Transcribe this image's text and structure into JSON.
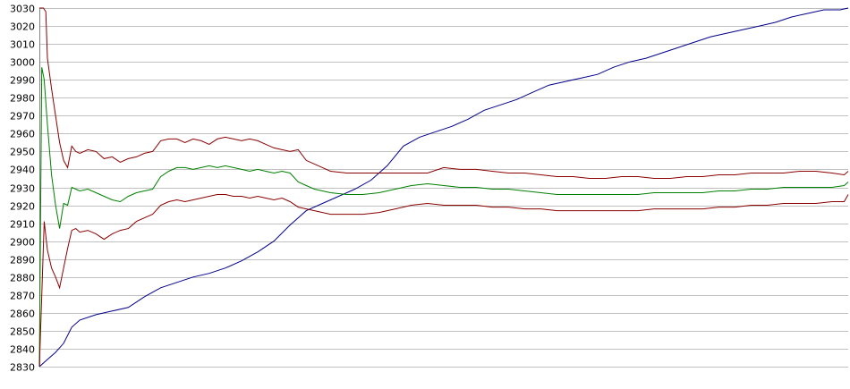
{
  "chart_data": {
    "type": "line",
    "title": "",
    "xlabel": "",
    "ylabel": "",
    "ylim": [
      2830,
      3030
    ],
    "xlim": [
      0,
      100
    ],
    "grid": true,
    "legend": "none",
    "y_ticks": [
      "3030",
      "3020",
      "3010",
      "3000",
      "2990",
      "2980",
      "2970",
      "2960",
      "2950",
      "2940",
      "2930",
      "2920",
      "2910",
      "2900",
      "2890",
      "2880",
      "2870",
      "2860",
      "2850",
      "2840",
      "2830"
    ],
    "series": [
      {
        "color": "#00008b",
        "x": [
          0,
          1,
          2,
          3,
          4,
          5,
          7,
          9,
          11,
          13,
          15,
          17,
          19,
          21,
          23,
          25,
          27,
          29,
          31,
          33,
          35,
          37,
          39,
          41,
          43,
          45,
          47,
          49,
          51,
          53,
          55,
          57,
          59,
          61,
          63,
          65,
          67,
          69,
          71,
          73,
          75,
          77,
          79,
          81,
          83,
          85,
          87,
          89,
          91,
          93,
          95,
          97,
          99,
          100
        ],
        "values": [
          2830,
          2834,
          2838,
          2843,
          2852,
          2856,
          2859,
          2861,
          2863,
          2869,
          2874,
          2877,
          2880,
          2882,
          2885,
          2889,
          2894,
          2900,
          2909,
          2917,
          2921,
          2925,
          2929,
          2934,
          2942,
          2953,
          2958,
          2961,
          2964,
          2968,
          2973,
          2976,
          2979,
          2983,
          2987,
          2989,
          2991,
          2993,
          2997,
          3000,
          3002,
          3005,
          3008,
          3011,
          3014,
          3016,
          3018,
          3020,
          3022,
          3025,
          3027,
          3029,
          3029,
          3030
        ]
      },
      {
        "color": "#8b0000",
        "x": [
          0,
          0.2,
          0.5,
          0.8,
          1,
          1.5,
          2,
          2.5,
          3,
          3.5,
          4,
          4.5,
          5,
          6,
          7,
          8,
          9,
          10,
          11,
          12,
          13,
          14,
          15,
          16,
          17,
          18,
          19,
          20,
          21,
          22,
          23,
          24,
          25,
          26,
          27,
          28,
          29,
          30,
          31,
          32,
          33,
          34,
          35,
          36,
          38,
          40,
          42,
          44,
          46,
          48,
          50,
          52,
          54,
          56,
          58,
          60,
          62,
          64,
          66,
          68,
          70,
          72,
          74,
          76,
          78,
          80,
          82,
          84,
          86,
          88,
          90,
          92,
          94,
          96,
          98,
          99.5,
          100
        ],
        "values": [
          3030,
          3030,
          3030,
          3028,
          3002,
          2985,
          2970,
          2955,
          2945,
          2941,
          2953,
          2950,
          2949,
          2951,
          2950,
          2946,
          2947,
          2944,
          2946,
          2947,
          2949,
          2950,
          2956,
          2957,
          2957,
          2955,
          2957,
          2956,
          2954,
          2957,
          2958,
          2957,
          2956,
          2957,
          2956,
          2954,
          2952,
          2951,
          2950,
          2951,
          2945,
          2943,
          2941,
          2939,
          2938,
          2938,
          2938,
          2938,
          2938,
          2938,
          2941,
          2940,
          2940,
          2939,
          2938,
          2938,
          2937,
          2936,
          2936,
          2935,
          2935,
          2936,
          2936,
          2935,
          2935,
          2936,
          2936,
          2937,
          2937,
          2938,
          2938,
          2938,
          2939,
          2939,
          2938,
          2937,
          2939
        ]
      },
      {
        "color": "#008000",
        "x": [
          0,
          0.3,
          0.6,
          1,
          1.5,
          2,
          2.5,
          3,
          3.5,
          4,
          4.5,
          5,
          6,
          7,
          8,
          9,
          10,
          11,
          12,
          13,
          14,
          15,
          16,
          17,
          18,
          19,
          20,
          21,
          22,
          23,
          24,
          25,
          26,
          27,
          28,
          29,
          30,
          31,
          32,
          33,
          34,
          35,
          36,
          38,
          40,
          42,
          44,
          46,
          48,
          50,
          52,
          54,
          56,
          58,
          60,
          62,
          64,
          66,
          68,
          70,
          72,
          74,
          76,
          78,
          80,
          82,
          84,
          86,
          88,
          90,
          92,
          94,
          96,
          98,
          99.5,
          100
        ],
        "values": [
          2830,
          2997,
          2990,
          2965,
          2937,
          2920,
          2907,
          2921,
          2920,
          2930,
          2929,
          2928,
          2929,
          2927,
          2925,
          2923,
          2922,
          2925,
          2927,
          2928,
          2929,
          2936,
          2939,
          2941,
          2941,
          2940,
          2941,
          2942,
          2941,
          2942,
          2941,
          2940,
          2939,
          2940,
          2939,
          2938,
          2939,
          2938,
          2933,
          2931,
          2929,
          2928,
          2927,
          2926,
          2926,
          2927,
          2929,
          2931,
          2932,
          2931,
          2930,
          2930,
          2929,
          2929,
          2928,
          2927,
          2926,
          2926,
          2926,
          2926,
          2926,
          2926,
          2927,
          2927,
          2927,
          2927,
          2928,
          2928,
          2929,
          2929,
          2930,
          2930,
          2930,
          2930,
          2931,
          2933
        ]
      },
      {
        "color": "#8b0000",
        "x": [
          0,
          0.3,
          0.6,
          1,
          1.5,
          2,
          2.5,
          3,
          3.5,
          4,
          4.5,
          5,
          6,
          7,
          8,
          9,
          10,
          11,
          12,
          13,
          14,
          15,
          16,
          17,
          18,
          19,
          20,
          21,
          22,
          23,
          24,
          25,
          26,
          27,
          28,
          29,
          30,
          31,
          32,
          33,
          34,
          35,
          36,
          38,
          40,
          42,
          44,
          46,
          48,
          50,
          52,
          54,
          56,
          58,
          60,
          62,
          64,
          66,
          68,
          70,
          72,
          74,
          76,
          78,
          80,
          82,
          84,
          86,
          88,
          90,
          92,
          94,
          96,
          98,
          99.5,
          100
        ],
        "values": [
          2830,
          2870,
          2911,
          2895,
          2885,
          2880,
          2874,
          2885,
          2896,
          2906,
          2907,
          2905,
          2906,
          2904,
          2901,
          2904,
          2906,
          2907,
          2911,
          2913,
          2915,
          2920,
          2922,
          2923,
          2922,
          2923,
          2924,
          2925,
          2926,
          2926,
          2925,
          2925,
          2924,
          2925,
          2924,
          2923,
          2924,
          2922,
          2919,
          2918,
          2917,
          2916,
          2915,
          2915,
          2915,
          2916,
          2918,
          2920,
          2921,
          2920,
          2920,
          2920,
          2919,
          2919,
          2918,
          2918,
          2917,
          2917,
          2917,
          2917,
          2917,
          2917,
          2918,
          2918,
          2918,
          2918,
          2919,
          2919,
          2920,
          2920,
          2921,
          2921,
          2921,
          2922,
          2922,
          2926
        ]
      }
    ]
  }
}
